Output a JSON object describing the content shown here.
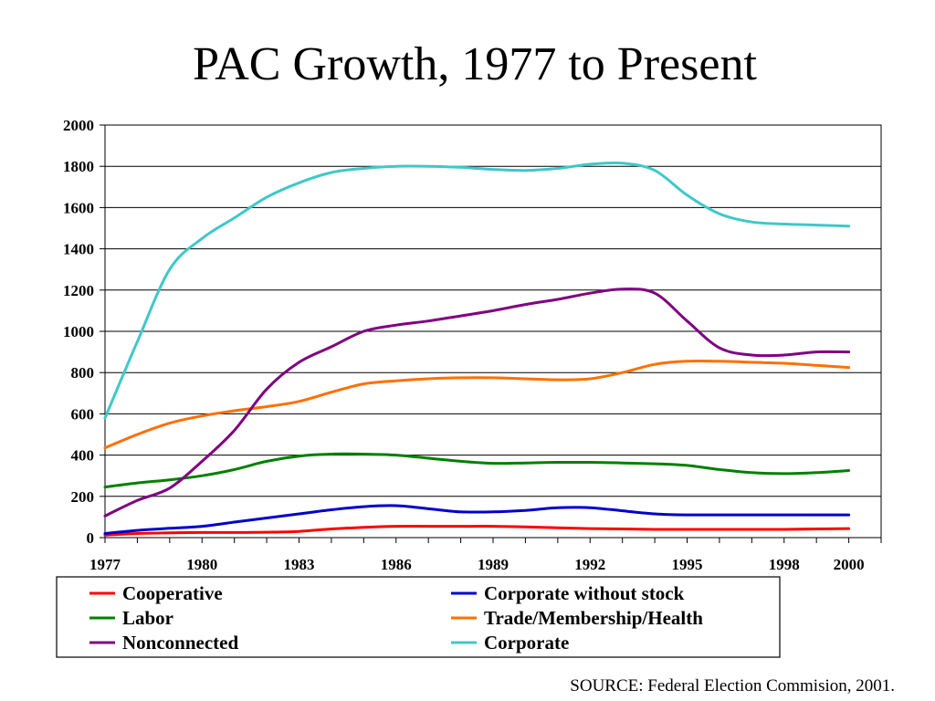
{
  "slide": {
    "title": "PAC Growth, 1977 to Present",
    "source": "SOURCE: Federal Election Commision, 2001."
  },
  "chart_data": {
    "type": "line",
    "title": "PAC Growth, 1977 to Present",
    "xlabel": "",
    "ylabel": "",
    "x": [
      1977,
      1978,
      1979,
      1980,
      1981,
      1982,
      1983,
      1984,
      1985,
      1986,
      1987,
      1988,
      1989,
      1990,
      1991,
      1992,
      1993,
      1994,
      1995,
      1996,
      1997,
      1998,
      1999,
      2000
    ],
    "x_tick_labels": [
      "1977",
      "1980",
      "1983",
      "1986",
      "1989",
      "1992",
      "1995",
      "1998",
      "2000"
    ],
    "y_tick_labels": [
      "0",
      "200",
      "400",
      "600",
      "800",
      "1000",
      "1200",
      "1400",
      "1600",
      "1800",
      "2000"
    ],
    "ylim": [
      0,
      2000
    ],
    "grid": "horizontal",
    "legend_position": "bottom",
    "series": [
      {
        "name": "Cooperative",
        "color": "#ff0000",
        "values": [
          12,
          20,
          23,
          25,
          25,
          26,
          30,
          42,
          50,
          55,
          55,
          55,
          55,
          52,
          48,
          44,
          42,
          40,
          40,
          40,
          40,
          40,
          42,
          44
        ]
      },
      {
        "name": "Corporate without stock",
        "color": "#0000cc",
        "values": [
          20,
          35,
          45,
          55,
          75,
          95,
          115,
          135,
          150,
          155,
          140,
          125,
          125,
          132,
          145,
          145,
          130,
          115,
          110,
          110,
          110,
          110,
          110,
          110
        ]
      },
      {
        "name": "Labor",
        "color": "#008000",
        "values": [
          245,
          265,
          280,
          300,
          330,
          370,
          395,
          405,
          405,
          400,
          385,
          370,
          360,
          362,
          365,
          365,
          362,
          358,
          350,
          330,
          315,
          310,
          315,
          325
        ]
      },
      {
        "name": "Trade/Membership/Health",
        "color": "#ff7000",
        "values": [
          435,
          500,
          555,
          590,
          615,
          635,
          660,
          705,
          745,
          760,
          770,
          775,
          775,
          770,
          765,
          770,
          800,
          840,
          855,
          855,
          850,
          845,
          835,
          825
        ]
      },
      {
        "name": "Nonconnected",
        "color": "#800080",
        "values": [
          105,
          180,
          240,
          370,
          520,
          720,
          850,
          925,
          1000,
          1030,
          1050,
          1075,
          1100,
          1130,
          1155,
          1185,
          1205,
          1185,
          1050,
          920,
          885,
          885,
          900,
          900
        ]
      },
      {
        "name": "Corporate",
        "color": "#3fc8c8",
        "values": [
          580,
          950,
          1300,
          1450,
          1550,
          1650,
          1720,
          1770,
          1790,
          1800,
          1800,
          1795,
          1785,
          1780,
          1790,
          1810,
          1815,
          1780,
          1660,
          1570,
          1530,
          1520,
          1515,
          1510
        ]
      }
    ]
  }
}
